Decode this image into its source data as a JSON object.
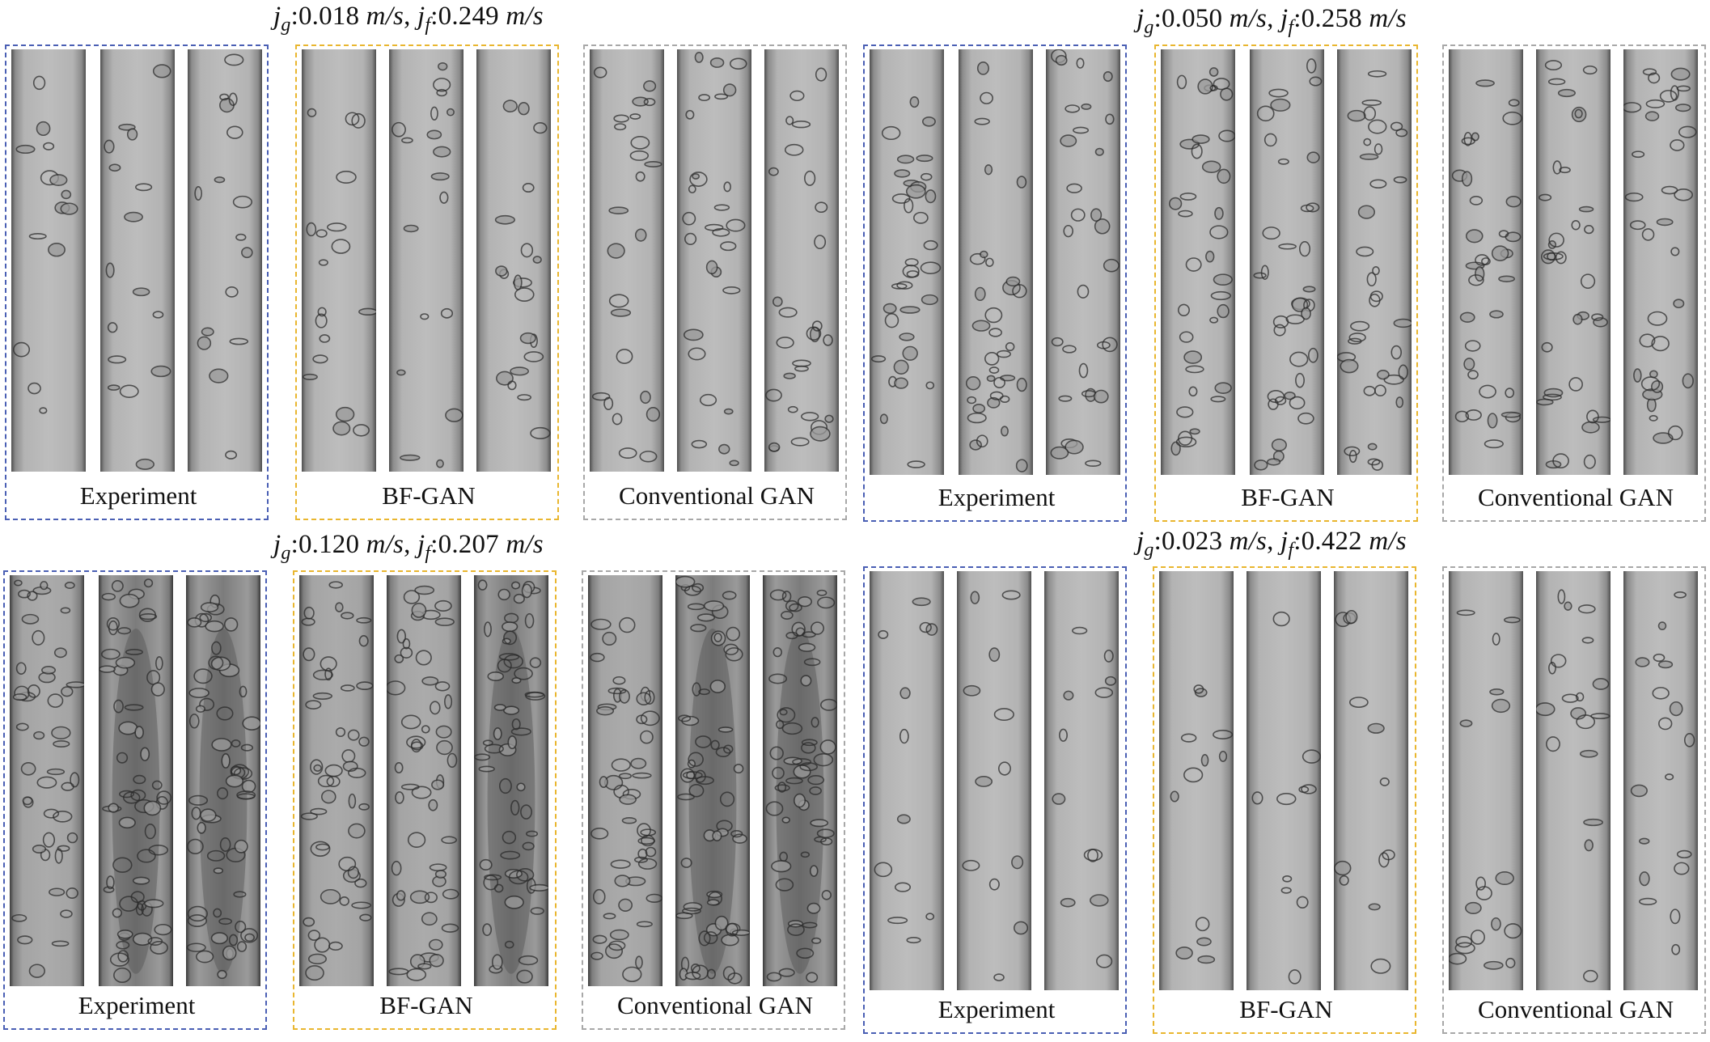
{
  "conditions": [
    {
      "jg_label": "j",
      "jg_sub": "g",
      "jg_value": ":0.018 ",
      "jg_unit": "m/s",
      "sep": ", ",
      "jf_label": "j",
      "jf_sub": "f",
      "jf_value": ":0.249 ",
      "jf_unit": "m/s",
      "captions": {
        "experiment": "Experiment",
        "bfgan": "BF-GAN",
        "conventional": "Conventional GAN"
      }
    },
    {
      "jg_label": "j",
      "jg_sub": "g",
      "jg_value": ":0.050 ",
      "jg_unit": "m/s",
      "sep": ", ",
      "jf_label": "j",
      "jf_sub": "f",
      "jf_value": ":0.258 ",
      "jf_unit": "m/s",
      "captions": {
        "experiment": "Experiment",
        "bfgan": "BF-GAN",
        "conventional": "Conventional GAN"
      }
    },
    {
      "jg_label": "j",
      "jg_sub": "g",
      "jg_value": ":0.120 ",
      "jg_unit": "m/s",
      "sep": ", ",
      "jf_label": "j",
      "jf_sub": "f",
      "jf_value": ":0.207 ",
      "jf_unit": "m/s",
      "captions": {
        "experiment": "Experiment",
        "bfgan": "BF-GAN",
        "conventional": "Conventional GAN"
      }
    },
    {
      "jg_label": "j",
      "jg_sub": "g",
      "jg_value": ":0.023 ",
      "jg_unit": "m/s",
      "sep": ", ",
      "jf_label": "j",
      "jf_sub": "f",
      "jf_value": ":0.422 ",
      "jf_unit": "m/s",
      "captions": {
        "experiment": "Experiment",
        "bfgan": "BF-GAN",
        "conventional": "Conventional GAN"
      }
    }
  ],
  "colors": {
    "experiment_border": "#4a5fb4",
    "bfgan_border": "#e9b62f",
    "conventional_border": "#a8a8a8"
  }
}
